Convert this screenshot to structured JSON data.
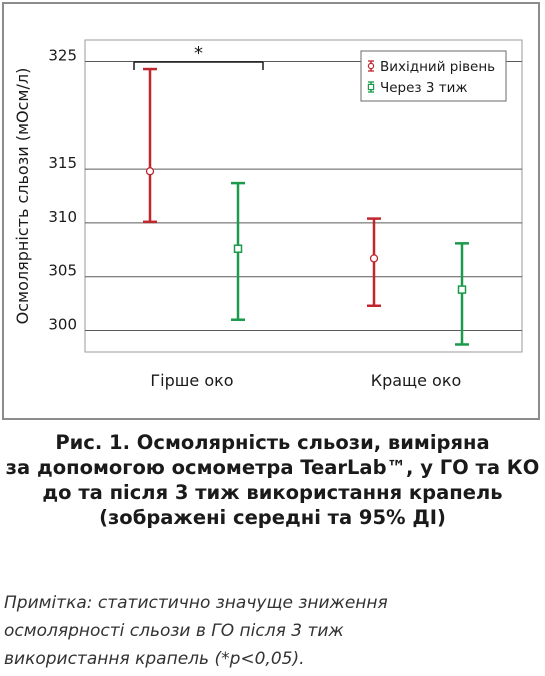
{
  "chart_data": {
    "type": "errorbar",
    "ylabel": "Осмолярність сльози (мОсм/л)",
    "yticks": [
      300,
      305,
      310,
      315,
      325
    ],
    "ylim": [
      298,
      327
    ],
    "categories": [
      "Гірше око",
      "Краще око"
    ],
    "series": [
      {
        "name": "Вихідний рівень",
        "marker": "circle",
        "color": "#c0262d",
        "mean": [
          314.8,
          306.7
        ],
        "ci_low": [
          310.1,
          302.3
        ],
        "ci_high": [
          324.3,
          310.4
        ]
      },
      {
        "name": "Через 3 тиж",
        "marker": "square",
        "color": "#1a9a4a",
        "mean": [
          307.6,
          303.8
        ],
        "ci_low": [
          301.0,
          298.7
        ],
        "ci_high": [
          313.7,
          308.1
        ]
      }
    ],
    "significance": {
      "label": "*",
      "between": [
        "Вихідний рівень",
        "Через 3 тиж"
      ],
      "category": "Гірше око"
    },
    "grid": true,
    "legend_position": "top-right"
  },
  "caption": {
    "lines": [
      "Рис. 1. Осмолярність сльози, виміряна",
      "за допомогою осмометра TearLab™, у ГО та КО",
      "до та після 3 тиж використання крапель",
      "(зображені середні та 95% ДІ)"
    ]
  },
  "note": {
    "lines": [
      "Примітка: статистично значуще зниження",
      "осмолярності сльози в ГО після 3 тиж",
      "використання крапель (*р<0,05)."
    ]
  }
}
